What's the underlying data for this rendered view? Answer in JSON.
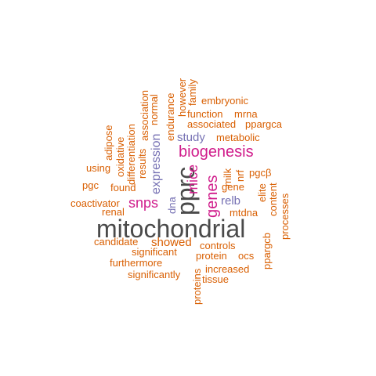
{
  "palette": {
    "gray": "#4a4a4a",
    "orange": "#d95f02",
    "purple": "#7570b3",
    "magenta": "#d01c8b"
  },
  "words": [
    {
      "text": "mitochondrial",
      "color": "gray"
    },
    {
      "text": "pprc",
      "color": "gray"
    },
    {
      "text": "biogenesis",
      "color": "magenta"
    },
    {
      "text": "genes",
      "color": "magenta"
    },
    {
      "text": "mice",
      "color": "magenta"
    },
    {
      "text": "snps",
      "color": "magenta"
    },
    {
      "text": "expression",
      "color": "purple"
    },
    {
      "text": "study",
      "color": "purple"
    },
    {
      "text": "relb",
      "color": "purple"
    },
    {
      "text": "dna",
      "color": "purple"
    },
    {
      "text": "embryonic",
      "color": "orange"
    },
    {
      "text": "function",
      "color": "orange"
    },
    {
      "text": "mrna",
      "color": "orange"
    },
    {
      "text": "associated",
      "color": "orange"
    },
    {
      "text": "ppargca",
      "color": "orange"
    },
    {
      "text": "metabolic",
      "color": "orange"
    },
    {
      "text": "milk",
      "color": "orange"
    },
    {
      "text": "nrf",
      "color": "orange"
    },
    {
      "text": "pgcβ",
      "color": "orange"
    },
    {
      "text": "gene",
      "color": "orange"
    },
    {
      "text": "elite",
      "color": "orange"
    },
    {
      "text": "content",
      "color": "orange"
    },
    {
      "text": "processes",
      "color": "orange"
    },
    {
      "text": "mtdna",
      "color": "orange"
    },
    {
      "text": "controls",
      "color": "orange"
    },
    {
      "text": "protein",
      "color": "orange"
    },
    {
      "text": "ocs",
      "color": "orange"
    },
    {
      "text": "ppargcb",
      "color": "orange"
    },
    {
      "text": "increased",
      "color": "orange"
    },
    {
      "text": "tissue",
      "color": "orange"
    },
    {
      "text": "proteins",
      "color": "orange"
    },
    {
      "text": "significantly",
      "color": "orange"
    },
    {
      "text": "furthermore",
      "color": "orange"
    },
    {
      "text": "significant",
      "color": "orange"
    },
    {
      "text": "showed",
      "color": "orange"
    },
    {
      "text": "candidate",
      "color": "orange"
    },
    {
      "text": "renal",
      "color": "orange"
    },
    {
      "text": "coactivator",
      "color": "orange"
    },
    {
      "text": "pgc",
      "color": "orange"
    },
    {
      "text": "using",
      "color": "orange"
    },
    {
      "text": "found",
      "color": "orange"
    },
    {
      "text": "adipose",
      "color": "orange"
    },
    {
      "text": "oxidative",
      "color": "orange"
    },
    {
      "text": "differentiation",
      "color": "orange"
    },
    {
      "text": "results",
      "color": "orange"
    },
    {
      "text": "association",
      "color": "orange"
    },
    {
      "text": "normal",
      "color": "orange"
    },
    {
      "text": "endurance",
      "color": "orange"
    },
    {
      "text": "however",
      "color": "orange"
    },
    {
      "text": "family",
      "color": "orange"
    }
  ]
}
